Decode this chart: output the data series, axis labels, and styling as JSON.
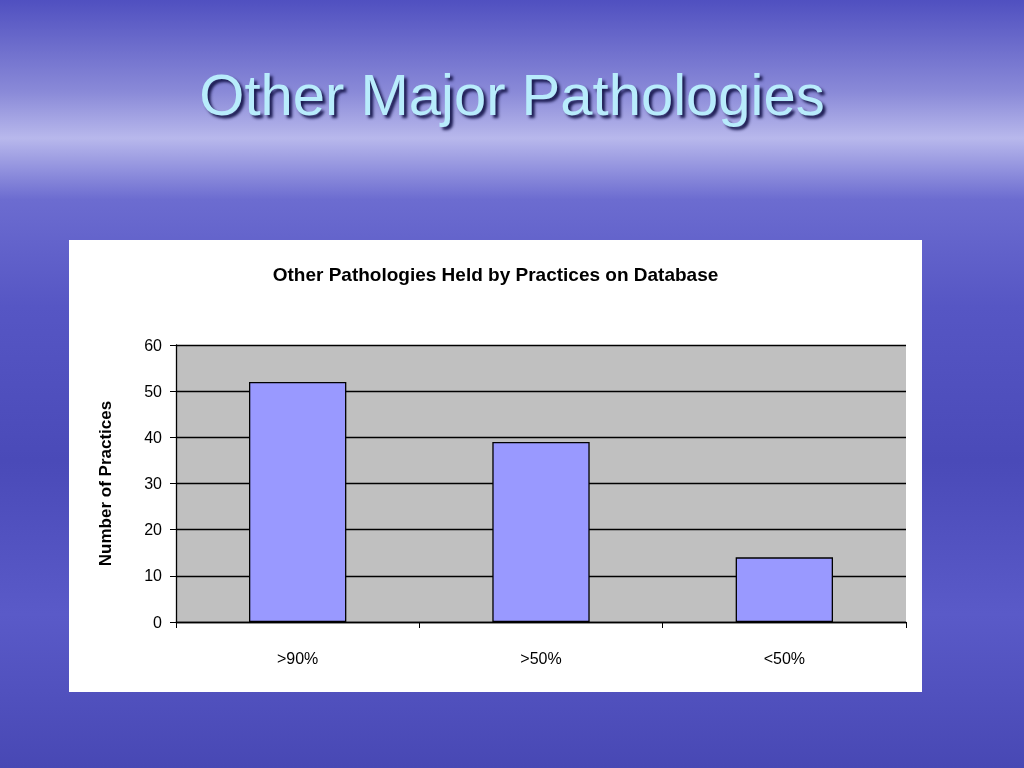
{
  "chart_data": {
    "type": "bar",
    "title": "Other Major Pathologies",
    "subtitle": "Other Pathologies Held by Practices on Database",
    "ylabel": "Number of Practices",
    "categories": [
      ">90%",
      ">50%",
      "<50%"
    ],
    "values": [
      52,
      39,
      14
    ],
    "color": "#9999ff",
    "ylim": [
      0,
      60
    ],
    "yticks": [
      0,
      10,
      20,
      30,
      40,
      50,
      60
    ],
    "grid": "y"
  }
}
